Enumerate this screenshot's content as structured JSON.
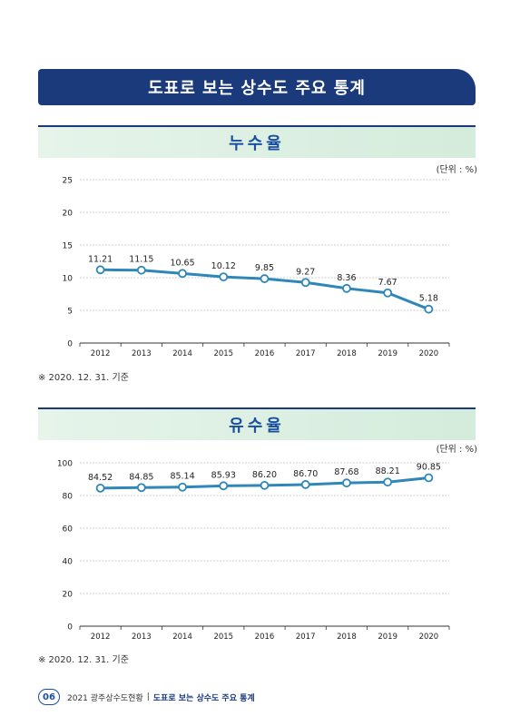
{
  "banner_title": "도표로 보는 상수도 주요 통계",
  "footer": {
    "page_number": "06",
    "publication": "2021 광주상수도현황",
    "separator": "|",
    "section": "도표로 보는 상수도 주요 통계"
  },
  "colors": {
    "navy": "#1a3a7c",
    "line": "#2f87b8",
    "green_header": "#d8efe0"
  },
  "chart_data": [
    {
      "type": "line",
      "title": "누수율",
      "unit_label": "(단위 : %)",
      "note": "※ 2020. 12. 31. 기준",
      "categories": [
        "2012",
        "2013",
        "2014",
        "2015",
        "2016",
        "2017",
        "2018",
        "2019",
        "2020"
      ],
      "values": [
        11.21,
        11.15,
        10.65,
        10.12,
        9.85,
        9.27,
        8.36,
        7.67,
        5.18
      ],
      "value_labels": [
        "11.21",
        "11.15",
        "10.65",
        "10.12",
        "9.85",
        "9.27",
        "8.36",
        "7.67",
        "5.18"
      ],
      "ylim": [
        0,
        25
      ],
      "yticks": [
        0,
        5,
        10,
        15,
        20,
        25
      ],
      "grid": true
    },
    {
      "type": "line",
      "title": "유수율",
      "unit_label": "(단위 : %)",
      "note": "※ 2020. 12. 31. 기준",
      "categories": [
        "2012",
        "2013",
        "2014",
        "2015",
        "2016",
        "2017",
        "2018",
        "2019",
        "2020"
      ],
      "values": [
        84.52,
        84.85,
        85.14,
        85.93,
        86.2,
        86.7,
        87.68,
        88.21,
        90.85
      ],
      "value_labels": [
        "84.52",
        "84.85",
        "85.14",
        "85.93",
        "86.20",
        "86.70",
        "87.68",
        "88.21",
        "90.85"
      ],
      "ylim": [
        0,
        100
      ],
      "yticks": [
        0,
        20,
        40,
        60,
        80,
        100
      ],
      "grid": true
    }
  ]
}
